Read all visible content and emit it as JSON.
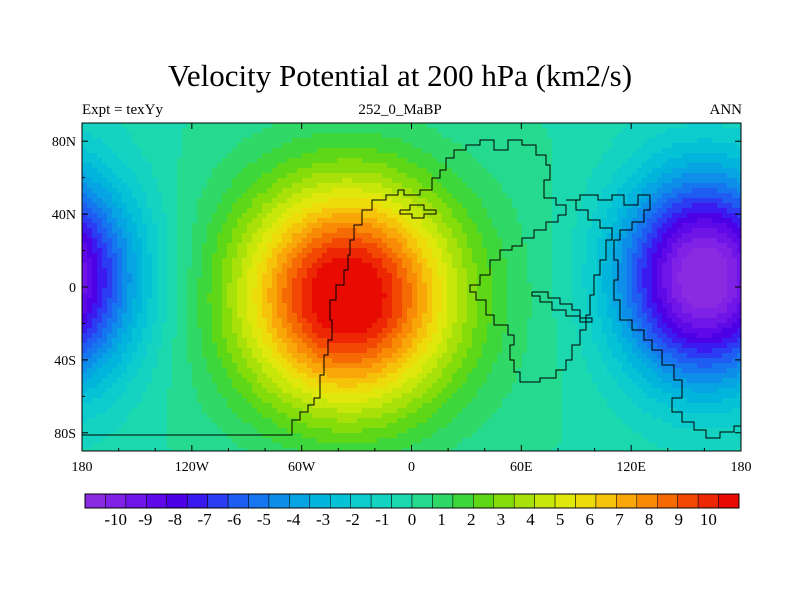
{
  "title": "Velocity Potential at 200 hPa (km2/s)",
  "left_string": "Expt = texYy",
  "center_string": "252_0_MaBP",
  "right_string": "ANN",
  "map": {
    "lon_range": [
      -180,
      180
    ],
    "lat_range": [
      -90,
      90
    ],
    "lon_ticks": [
      "180",
      "120W",
      "60W",
      "0",
      "60E",
      "120E",
      "180"
    ],
    "lat_ticks": [
      "80N",
      "40N",
      "0",
      "40S",
      "80S"
    ]
  },
  "field": {
    "units": "km2/s",
    "centers": [
      {
        "name": "positive-center",
        "lon": -35,
        "lat": -5,
        "value": 10.5
      },
      {
        "name": "negative-center-east",
        "lon": 160,
        "lat": 5,
        "value": -10.5
      },
      {
        "name": "negative-center-west",
        "lon": -180,
        "lat": 5,
        "value": -10.5
      }
    ]
  },
  "colorbar": {
    "labels": [
      "-10",
      "-9",
      "-8",
      "-7",
      "-6",
      "-5",
      "-4",
      "-3",
      "-2",
      "-1",
      "0",
      "1",
      "2",
      "3",
      "4",
      "5",
      "6",
      "7",
      "8",
      "9",
      "10"
    ],
    "colors": [
      "#8a2be2",
      "#7f22e6",
      "#7015e8",
      "#5e0ae8",
      "#4b00e6",
      "#3a1aee",
      "#2b3cf2",
      "#1f5cf2",
      "#1576ef",
      "#0d8ee9",
      "#06a4e2",
      "#00b4dc",
      "#05c2d6",
      "#0dccce",
      "#14d4c1",
      "#1cd8ae",
      "#25d98f",
      "#2fd867",
      "#3ed73b",
      "#5ed816",
      "#85dc0b",
      "#a8e10a",
      "#c7e60a",
      "#e0e70b",
      "#eedb0a",
      "#f5c30a",
      "#f9a708",
      "#f98a06",
      "#f66a04",
      "#f24803",
      "#ed2603",
      "#e80b02"
    ]
  }
}
